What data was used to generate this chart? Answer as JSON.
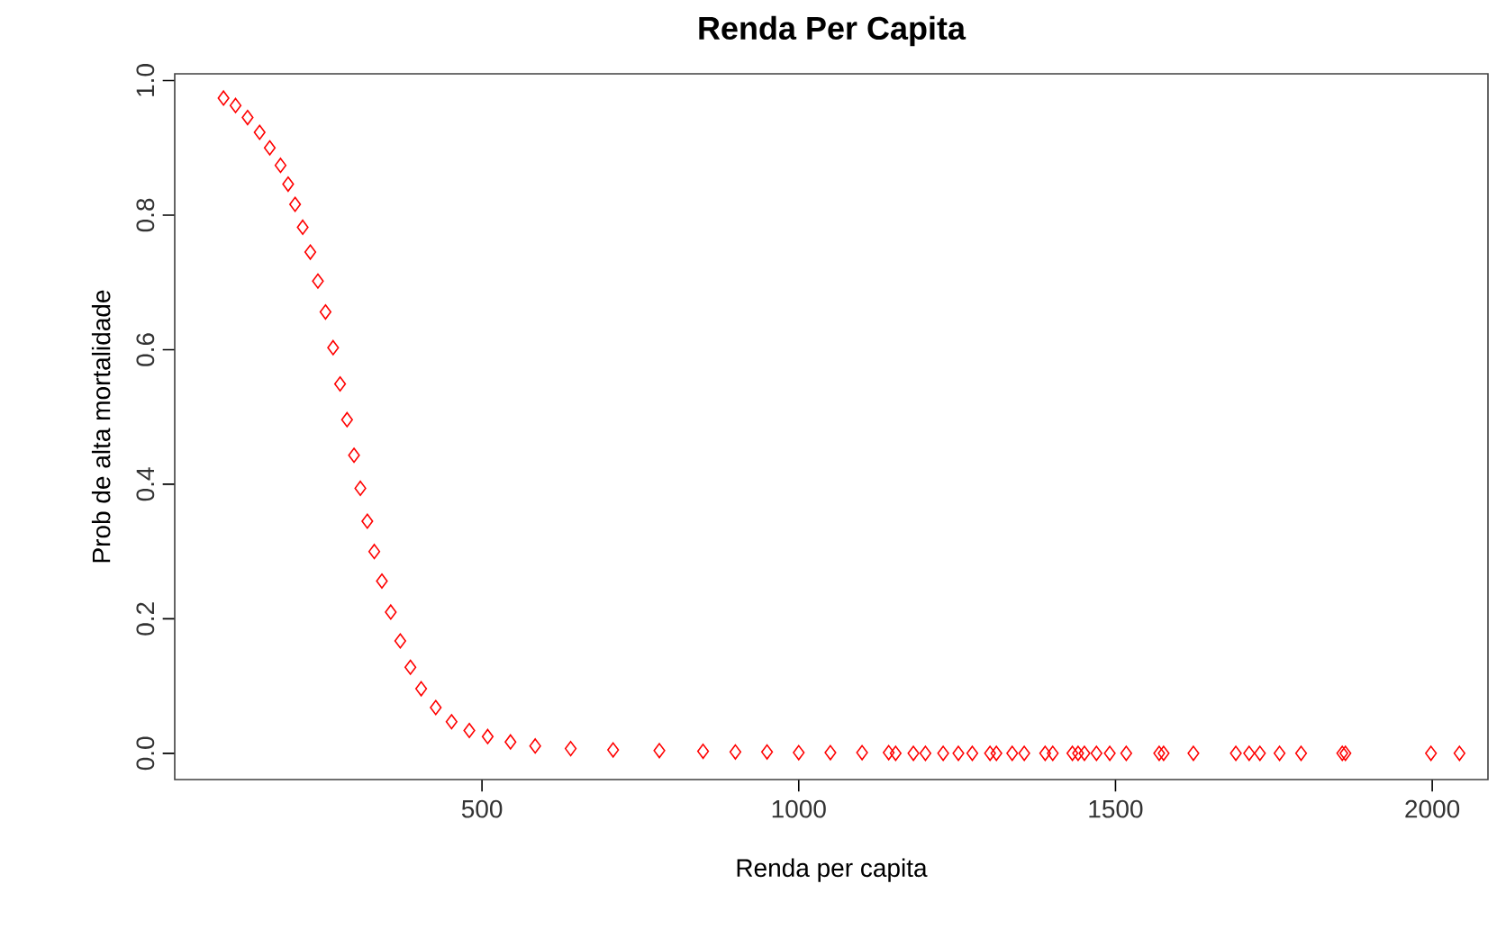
{
  "chart_data": {
    "type": "scatter",
    "title": "Renda Per Capita",
    "xlabel": "Renda per capita",
    "ylabel": "Prob de alta mortalidade",
    "series": [
      {
        "color": "#ff0000",
        "x": [
          92,
          111,
          130,
          149,
          165,
          182,
          194,
          205,
          217,
          229,
          241,
          253,
          265,
          276,
          287,
          298,
          308,
          319,
          330,
          342,
          356,
          371,
          387,
          404,
          427,
          452,
          480,
          509,
          545,
          584,
          640,
          707,
          780,
          849,
          900,
          950,
          1000,
          1050,
          1100,
          1142,
          1153,
          1181,
          1200,
          1228,
          1252,
          1274,
          1302,
          1312,
          1337,
          1356,
          1389,
          1401,
          1432,
          1441,
          1451,
          1470,
          1491,
          1517,
          1569,
          1576,
          1623,
          1690,
          1711,
          1728,
          1759,
          1793,
          1858,
          1863,
          1998,
          2043
        ],
        "values": [
          0.974,
          0.963,
          0.945,
          0.923,
          0.9,
          0.874,
          0.846,
          0.816,
          0.782,
          0.745,
          0.702,
          0.656,
          0.603,
          0.549,
          0.496,
          0.443,
          0.394,
          0.345,
          0.3,
          0.256,
          0.21,
          0.167,
          0.128,
          0.096,
          0.068,
          0.047,
          0.034,
          0.025,
          0.017,
          0.011,
          0.007,
          0.005,
          0.004,
          0.003,
          0.002,
          0.002,
          0.001,
          0.001,
          0.001,
          0.001,
          0,
          0,
          0,
          0,
          0,
          0,
          0,
          0,
          0,
          0,
          0,
          0,
          0,
          0,
          0,
          0,
          0,
          0,
          0,
          0,
          0,
          0,
          0,
          0,
          0,
          0,
          0,
          0,
          0,
          0
        ]
      }
    ],
    "marker": "diamond",
    "xlim": [
      15,
      2088
    ],
    "ylim": [
      -0.039,
      1.01
    ],
    "xticks": [
      500,
      1000,
      1500,
      2000
    ],
    "yticks": [
      {
        "value": 0,
        "label": "0.0"
      },
      {
        "value": 0.2,
        "label": "0.2"
      },
      {
        "value": 0.4,
        "label": "0.4"
      },
      {
        "value": 0.6,
        "label": "0.6"
      },
      {
        "value": 0.8,
        "label": "0.8"
      },
      {
        "value": 1,
        "label": "1.0"
      }
    ]
  }
}
